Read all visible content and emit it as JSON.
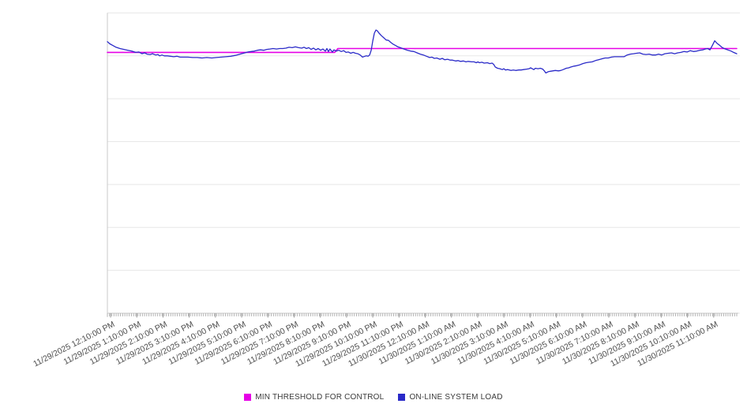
{
  "chart_data": {
    "type": "line",
    "title": "",
    "x_axis": {
      "labels": [
        "11/29/2025 12:10:00 PM",
        "11/29/2025 1:10:00 PM",
        "11/29/2025 2:10:00 PM",
        "11/29/2025 3:10:00 PM",
        "11/29/2025 4:10:00 PM",
        "11/29/2025 5:10:00 PM",
        "11/29/2025 6:10:00 PM",
        "11/29/2025 7:10:00 PM",
        "11/29/2025 8:10:00 PM",
        "11/29/2025 9:10:00 PM",
        "11/29/2025 10:10:00 PM",
        "11/29/2025 11:10:00 PM",
        "11/30/2025 12:10:00 AM",
        "11/30/2025 1:10:00 AM",
        "11/30/2025 2:10:00 AM",
        "11/30/2025 3:10:00 AM",
        "11/30/2025 4:10:00 AM",
        "11/30/2025 5:10:00 AM",
        "11/30/2025 6:10:00 AM",
        "11/30/2025 7:10:00 AM",
        "11/30/2025 8:10:00 AM",
        "11/30/2025 9:10:00 AM",
        "11/30/2025 10:10:00 AM",
        "11/30/2025 11:10:00 AM"
      ],
      "label_rotation_deg": -27,
      "range_hours": [
        -0.12,
        23.88
      ],
      "minor_ticks_per_hour": 12
    },
    "y_axis": {
      "labeled": false,
      "grid_divisions": 7,
      "range_units": [
        0,
        7
      ]
    },
    "grid": {
      "horizontal": true,
      "grid_color": "#e7e7e7",
      "axis_color": "#c9c9c9",
      "minor_tick_color": "#b3b3b3",
      "major_tick_color": "#999999",
      "label_color": "#4d4d4d"
    },
    "legend": {
      "position": "bottom-center"
    },
    "series": [
      {
        "name": "MIN THRESHOLD FOR CONTROL",
        "color": "#e600e6",
        "width": 1.6,
        "points": [
          [
            -0.12,
            6.08
          ],
          [
            8.55,
            6.08
          ],
          [
            8.67,
            6.17
          ],
          [
            23.88,
            6.17
          ]
        ]
      },
      {
        "name": "ON-LINE SYSTEM LOAD",
        "color": "#2a2ac8",
        "width": 1.3,
        "points": [
          [
            -0.12,
            6.33
          ],
          [
            -0.03,
            6.28
          ],
          [
            0.09,
            6.24
          ],
          [
            0.21,
            6.2
          ],
          [
            0.36,
            6.17
          ],
          [
            0.51,
            6.15
          ],
          [
            0.66,
            6.13
          ],
          [
            0.81,
            6.11
          ],
          [
            0.96,
            6.08
          ],
          [
            1.08,
            6.09
          ],
          [
            1.2,
            6.05
          ],
          [
            1.3,
            6.07
          ],
          [
            1.39,
            6.04
          ],
          [
            1.51,
            6.03
          ],
          [
            1.6,
            6.05
          ],
          [
            1.72,
            6.02
          ],
          [
            1.81,
            6.03
          ],
          [
            1.87,
            6.0
          ],
          [
            1.96,
            6.02
          ],
          [
            2.05,
            6.0
          ],
          [
            2.17,
            6.0
          ],
          [
            2.29,
            5.99
          ],
          [
            2.41,
            5.98
          ],
          [
            2.53,
            5.99
          ],
          [
            2.65,
            5.97
          ],
          [
            2.77,
            5.97
          ],
          [
            2.95,
            5.97
          ],
          [
            3.13,
            5.96
          ],
          [
            3.31,
            5.96
          ],
          [
            3.49,
            5.95
          ],
          [
            3.67,
            5.96
          ],
          [
            3.86,
            5.95
          ],
          [
            4.04,
            5.96
          ],
          [
            4.22,
            5.97
          ],
          [
            4.4,
            5.98
          ],
          [
            4.58,
            5.99
          ],
          [
            4.76,
            6.01
          ],
          [
            4.94,
            6.04
          ],
          [
            5.12,
            6.07
          ],
          [
            5.24,
            6.09
          ],
          [
            5.36,
            6.1
          ],
          [
            5.48,
            6.11
          ],
          [
            5.6,
            6.13
          ],
          [
            5.72,
            6.14
          ],
          [
            5.84,
            6.13
          ],
          [
            5.96,
            6.15
          ],
          [
            6.08,
            6.16
          ],
          [
            6.2,
            6.17
          ],
          [
            6.33,
            6.16
          ],
          [
            6.45,
            6.17
          ],
          [
            6.57,
            6.17
          ],
          [
            6.69,
            6.18
          ],
          [
            6.81,
            6.2
          ],
          [
            6.93,
            6.19
          ],
          [
            7.05,
            6.21
          ],
          [
            7.17,
            6.19
          ],
          [
            7.29,
            6.18
          ],
          [
            7.38,
            6.2
          ],
          [
            7.47,
            6.17
          ],
          [
            7.56,
            6.19
          ],
          [
            7.65,
            6.15
          ],
          [
            7.74,
            6.18
          ],
          [
            7.83,
            6.14
          ],
          [
            7.92,
            6.17
          ],
          [
            8.01,
            6.13
          ],
          [
            8.1,
            6.16
          ],
          [
            8.19,
            6.11
          ],
          [
            8.25,
            6.17
          ],
          [
            8.31,
            6.1
          ],
          [
            8.37,
            6.16
          ],
          [
            8.46,
            6.09
          ],
          [
            8.52,
            6.14
          ],
          [
            8.61,
            6.11
          ],
          [
            8.7,
            6.13
          ],
          [
            8.8,
            6.1
          ],
          [
            8.89,
            6.12
          ],
          [
            8.98,
            6.08
          ],
          [
            9.07,
            6.09
          ],
          [
            9.16,
            6.06
          ],
          [
            9.25,
            6.08
          ],
          [
            9.34,
            6.06
          ],
          [
            9.43,
            6.05
          ],
          [
            9.52,
            6.02
          ],
          [
            9.61,
            5.97
          ],
          [
            9.7,
            5.99
          ],
          [
            9.76,
            6.0
          ],
          [
            9.82,
            5.99
          ],
          [
            9.88,
            6.02
          ],
          [
            9.94,
            6.13
          ],
          [
            10.0,
            6.35
          ],
          [
            10.06,
            6.53
          ],
          [
            10.12,
            6.6
          ],
          [
            10.18,
            6.58
          ],
          [
            10.24,
            6.53
          ],
          [
            10.33,
            6.47
          ],
          [
            10.42,
            6.42
          ],
          [
            10.51,
            6.37
          ],
          [
            10.6,
            6.36
          ],
          [
            10.69,
            6.31
          ],
          [
            10.78,
            6.27
          ],
          [
            10.87,
            6.24
          ],
          [
            10.96,
            6.21
          ],
          [
            11.05,
            6.19
          ],
          [
            11.14,
            6.17
          ],
          [
            11.23,
            6.15
          ],
          [
            11.33,
            6.13
          ],
          [
            11.45,
            6.11
          ],
          [
            11.57,
            6.1
          ],
          [
            11.69,
            6.07
          ],
          [
            11.81,
            6.04
          ],
          [
            11.93,
            6.02
          ],
          [
            12.05,
            5.99
          ],
          [
            12.17,
            5.96
          ],
          [
            12.26,
            5.97
          ],
          [
            12.35,
            5.94
          ],
          [
            12.44,
            5.95
          ],
          [
            12.56,
            5.92
          ],
          [
            12.65,
            5.94
          ],
          [
            12.74,
            5.91
          ],
          [
            12.86,
            5.92
          ],
          [
            12.95,
            5.9
          ],
          [
            13.04,
            5.9
          ],
          [
            13.16,
            5.88
          ],
          [
            13.25,
            5.89
          ],
          [
            13.34,
            5.87
          ],
          [
            13.46,
            5.88
          ],
          [
            13.55,
            5.86
          ],
          [
            13.64,
            5.87
          ],
          [
            13.77,
            5.86
          ],
          [
            13.86,
            5.86
          ],
          [
            13.95,
            5.84
          ],
          [
            14.01,
            5.86
          ],
          [
            14.07,
            5.84
          ],
          [
            14.16,
            5.85
          ],
          [
            14.25,
            5.83
          ],
          [
            14.37,
            5.84
          ],
          [
            14.46,
            5.82
          ],
          [
            14.55,
            5.83
          ],
          [
            14.61,
            5.8
          ],
          [
            14.67,
            5.74
          ],
          [
            14.76,
            5.71
          ],
          [
            14.85,
            5.7
          ],
          [
            14.94,
            5.68
          ],
          [
            15.0,
            5.7
          ],
          [
            15.06,
            5.67
          ],
          [
            15.15,
            5.68
          ],
          [
            15.27,
            5.66
          ],
          [
            15.36,
            5.67
          ],
          [
            15.45,
            5.66
          ],
          [
            15.57,
            5.67
          ],
          [
            15.66,
            5.67
          ],
          [
            15.75,
            5.68
          ],
          [
            15.87,
            5.69
          ],
          [
            15.96,
            5.7
          ],
          [
            16.02,
            5.72
          ],
          [
            16.08,
            5.7
          ],
          [
            16.14,
            5.68
          ],
          [
            16.2,
            5.71
          ],
          [
            16.3,
            5.7
          ],
          [
            16.39,
            5.71
          ],
          [
            16.48,
            5.69
          ],
          [
            16.54,
            5.65
          ],
          [
            16.6,
            5.6
          ],
          [
            16.69,
            5.63
          ],
          [
            16.78,
            5.64
          ],
          [
            16.87,
            5.65
          ],
          [
            16.96,
            5.66
          ],
          [
            17.08,
            5.65
          ],
          [
            17.17,
            5.66
          ],
          [
            17.26,
            5.68
          ],
          [
            17.38,
            5.71
          ],
          [
            17.47,
            5.72
          ],
          [
            17.56,
            5.74
          ],
          [
            17.68,
            5.76
          ],
          [
            17.77,
            5.77
          ],
          [
            17.89,
            5.79
          ],
          [
            18.01,
            5.82
          ],
          [
            18.13,
            5.84
          ],
          [
            18.25,
            5.85
          ],
          [
            18.37,
            5.86
          ],
          [
            18.49,
            5.89
          ],
          [
            18.61,
            5.91
          ],
          [
            18.73,
            5.93
          ],
          [
            18.86,
            5.95
          ],
          [
            18.98,
            5.95
          ],
          [
            19.1,
            5.97
          ],
          [
            19.22,
            5.98
          ],
          [
            19.34,
            5.98
          ],
          [
            19.46,
            5.98
          ],
          [
            19.58,
            5.98
          ],
          [
            19.7,
            6.02
          ],
          [
            19.82,
            6.04
          ],
          [
            19.94,
            6.05
          ],
          [
            20.06,
            6.06
          ],
          [
            20.18,
            6.07
          ],
          [
            20.3,
            6.04
          ],
          [
            20.42,
            6.03
          ],
          [
            20.54,
            6.04
          ],
          [
            20.66,
            6.02
          ],
          [
            20.78,
            6.02
          ],
          [
            20.9,
            6.04
          ],
          [
            21.02,
            6.02
          ],
          [
            21.14,
            6.05
          ],
          [
            21.27,
            6.06
          ],
          [
            21.39,
            6.07
          ],
          [
            21.51,
            6.05
          ],
          [
            21.63,
            6.07
          ],
          [
            21.75,
            6.08
          ],
          [
            21.87,
            6.1
          ],
          [
            21.99,
            6.09
          ],
          [
            22.11,
            6.12
          ],
          [
            22.23,
            6.1
          ],
          [
            22.35,
            6.11
          ],
          [
            22.47,
            6.13
          ],
          [
            22.59,
            6.14
          ],
          [
            22.68,
            6.16
          ],
          [
            22.77,
            6.17
          ],
          [
            22.86,
            6.14
          ],
          [
            22.95,
            6.24
          ],
          [
            23.04,
            6.35
          ],
          [
            23.13,
            6.29
          ],
          [
            23.22,
            6.25
          ],
          [
            23.31,
            6.2
          ],
          [
            23.4,
            6.17
          ],
          [
            23.49,
            6.15
          ],
          [
            23.58,
            6.13
          ],
          [
            23.67,
            6.11
          ],
          [
            23.76,
            6.08
          ],
          [
            23.88,
            6.05
          ]
        ]
      }
    ]
  }
}
